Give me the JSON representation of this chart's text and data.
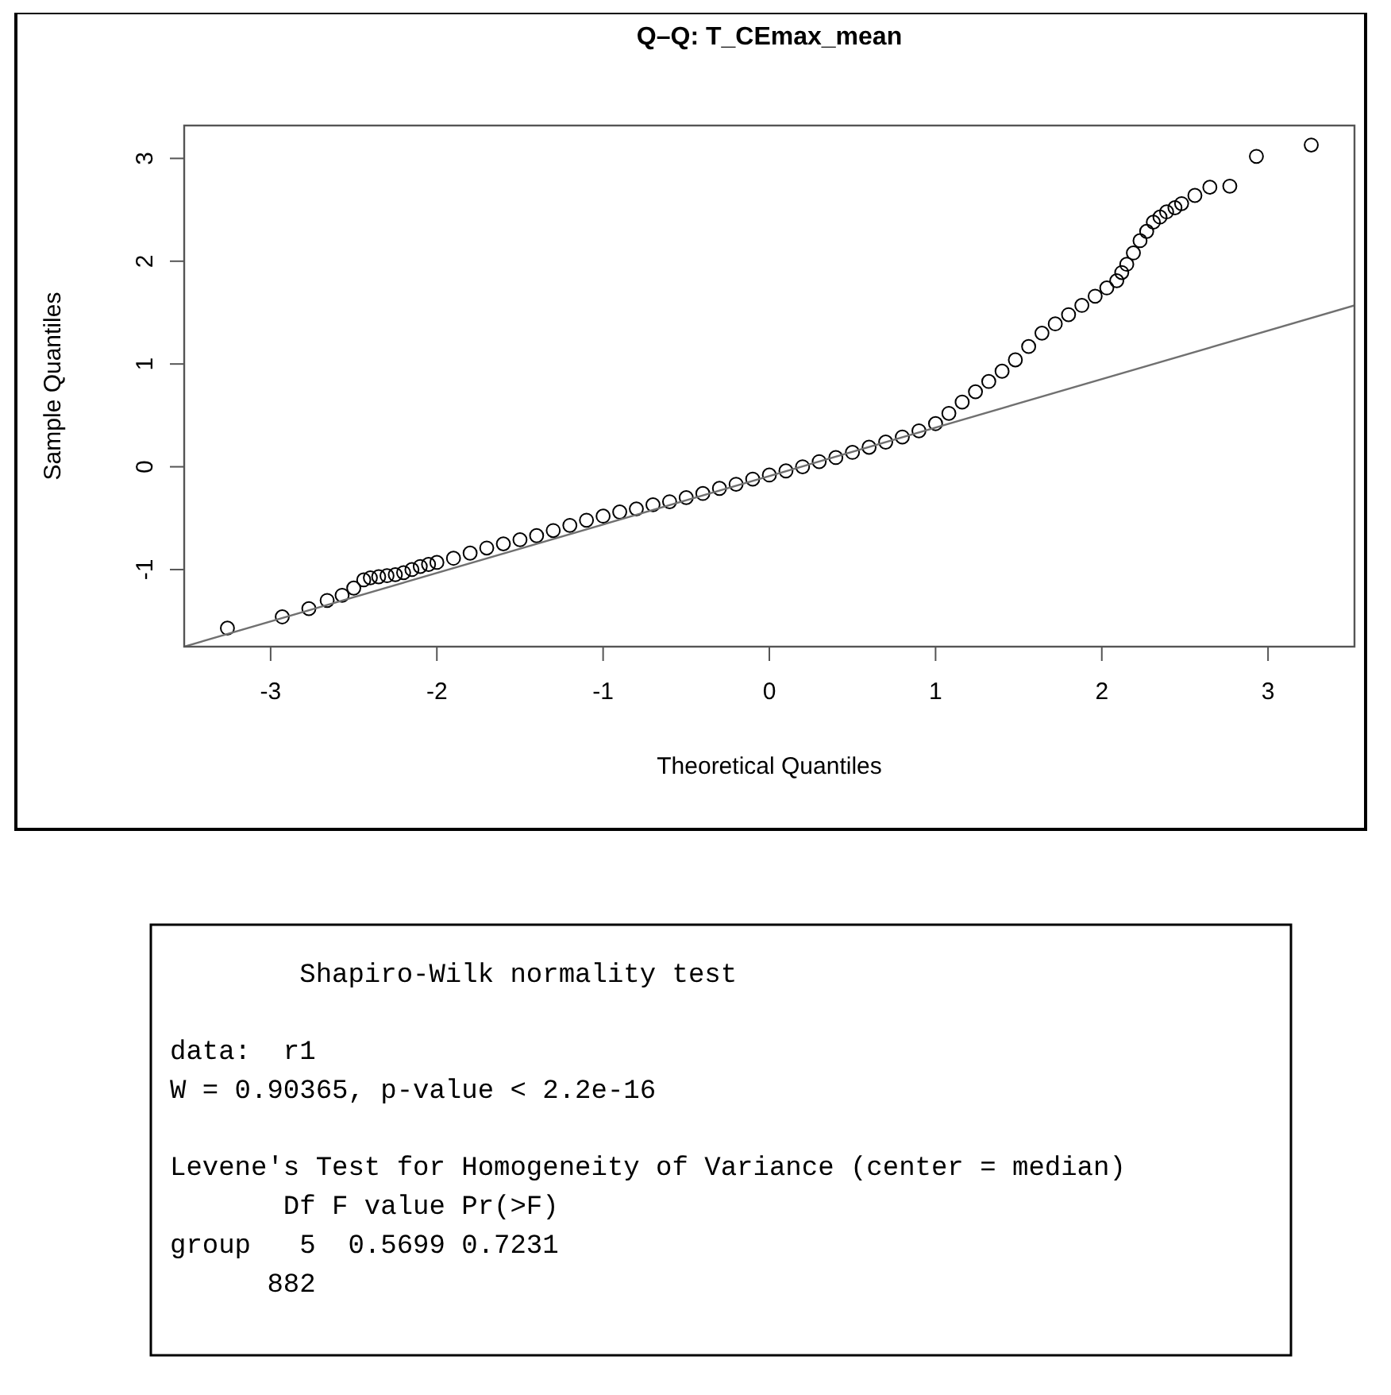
{
  "chart_data": [
    {
      "type": "scatter",
      "title": "Q–Q: T_CEmax_mean",
      "xlabel": "Theoretical Quantiles",
      "ylabel": "Sample Quantiles",
      "xlim": [
        -3.52,
        3.52
      ],
      "ylim": [
        -1.75,
        3.32
      ],
      "xticks": [
        -3,
        -2,
        -1,
        0,
        1,
        2,
        3
      ],
      "yticks": [
        -1,
        0,
        1,
        2,
        3
      ],
      "grid": false,
      "series": [
        {
          "type": "scatter",
          "color": "#000000",
          "marker": "circle",
          "x": [
            -3.26,
            -2.93,
            -2.77,
            -2.66,
            -2.57,
            -2.5,
            -2.44,
            -2.4,
            -2.35,
            -2.3,
            -2.25,
            -2.2,
            -2.15,
            -2.1,
            -2.05,
            -2.0,
            -1.9,
            -1.8,
            -1.7,
            -1.6,
            -1.5,
            -1.4,
            -1.3,
            -1.2,
            -1.1,
            -1.0,
            -0.9,
            -0.8,
            -0.7,
            -0.6,
            -0.5,
            -0.4,
            -0.3,
            -0.2,
            -0.1,
            0,
            0.1,
            0.2,
            0.3,
            0.4,
            0.5,
            0.6,
            0.7,
            0.8,
            0.9,
            1.0,
            1.08,
            1.16,
            1.24,
            1.32,
            1.4,
            1.48,
            1.56,
            1.64,
            1.72,
            1.8,
            1.88,
            1.96,
            2.03,
            2.09,
            2.12,
            2.15,
            2.19,
            2.23,
            2.27,
            2.31,
            2.35,
            2.39,
            2.44,
            2.48,
            2.56,
            2.65,
            2.77,
            2.93,
            3.26
          ],
          "values": [
            -1.57,
            -1.46,
            -1.38,
            -1.3,
            -1.25,
            -1.18,
            -1.1,
            -1.08,
            -1.07,
            -1.06,
            -1.05,
            -1.03,
            -1.0,
            -0.97,
            -0.95,
            -0.93,
            -0.89,
            -0.84,
            -0.79,
            -0.75,
            -0.71,
            -0.67,
            -0.62,
            -0.57,
            -0.52,
            -0.48,
            -0.44,
            -0.41,
            -0.37,
            -0.34,
            -0.3,
            -0.26,
            -0.21,
            -0.17,
            -0.12,
            -0.08,
            -0.04,
            0.0,
            0.05,
            0.09,
            0.14,
            0.19,
            0.24,
            0.29,
            0.35,
            0.42,
            0.52,
            0.63,
            0.73,
            0.83,
            0.93,
            1.04,
            1.17,
            1.3,
            1.39,
            1.48,
            1.57,
            1.66,
            1.74,
            1.81,
            1.89,
            1.97,
            2.08,
            2.2,
            2.29,
            2.38,
            2.43,
            2.48,
            2.52,
            2.56,
            2.64,
            2.72,
            2.73,
            3.02,
            3.13
          ]
        },
        {
          "type": "line",
          "color": "#707070",
          "line_style": "solid",
          "marker": "none",
          "x": [
            -3.52,
            3.52
          ],
          "values": [
            -1.75,
            1.57
          ]
        }
      ]
    },
    {
      "type": "other",
      "annotations": [
        "        Shapiro-Wilk normality test",
        "data:  r1",
        "W = 0.90365, p-value < 2.2e-16",
        "Levene's Test for Homogeneity of Variance (center = median)",
        "       Df F value Pr(>F)",
        "group   5  0.5699 0.7231",
        "      882"
      ]
    }
  ]
}
